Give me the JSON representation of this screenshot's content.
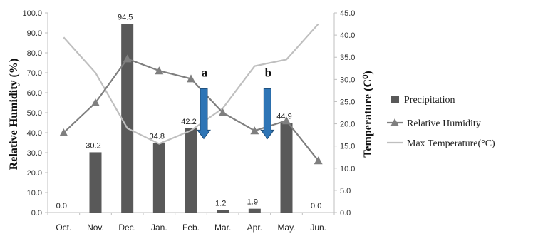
{
  "chart_data": {
    "type": "bar",
    "categories": [
      "Oct.",
      "Nov.",
      "Dec.",
      "Jan.",
      "Feb.",
      "Mar.",
      "Apr.",
      "May.",
      "Jun."
    ],
    "series": [
      {
        "name": "Precipitation",
        "kind": "bar",
        "axis": "left",
        "color": "#595959",
        "values": [
          0.0,
          30.2,
          94.5,
          34.8,
          42.2,
          1.2,
          1.9,
          44.9,
          0.0
        ],
        "labels": [
          "0.0",
          "30.2",
          "94.5",
          "34.8",
          "42.2",
          "1.2",
          "1.9",
          "44.9",
          "0.0"
        ]
      },
      {
        "name": "Relative Humidity",
        "kind": "line",
        "marker": "triangle",
        "axis": "left",
        "color": "#7f7f7f",
        "values": [
          40,
          55,
          77,
          71,
          67,
          50,
          41,
          46,
          26
        ]
      },
      {
        "name": "Max Temperature(°C)",
        "kind": "line",
        "axis": "right",
        "color": "#bfbfbf",
        "values": [
          39.5,
          31.5,
          19.0,
          15.5,
          18.5,
          23.5,
          33.0,
          34.5,
          42.5
        ]
      }
    ],
    "ylabel": "Relative Humidity (%)",
    "ylabel_right": "Temperature (C⁰)",
    "ylim": [
      0,
      100
    ],
    "ylim_right": [
      0,
      45
    ],
    "yticks": [
      "0.0",
      "10.0",
      "20.0",
      "30.0",
      "40.0",
      "50.0",
      "60.0",
      "70.0",
      "80.0",
      "90.0",
      "100.0"
    ],
    "yticks_right": [
      "0.0",
      "5.0",
      "10.0",
      "15.0",
      "20.0",
      "25.0",
      "30.0",
      "35.0",
      "40.0",
      "45.0"
    ],
    "grid": false,
    "legend_position": "right",
    "annotations": [
      {
        "label": "a",
        "category_index": 4,
        "from_value": 62,
        "to_value": 37,
        "color": "#2e75b6"
      },
      {
        "label": "b",
        "category_index": 6,
        "from_value": 62,
        "to_value": 37,
        "color": "#2e75b6"
      }
    ]
  }
}
